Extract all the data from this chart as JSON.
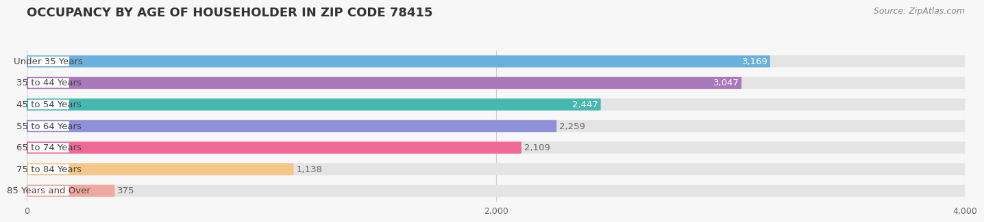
{
  "title": "OCCUPANCY BY AGE OF HOUSEHOLDER IN ZIP CODE 78415",
  "source": "Source: ZipAtlas.com",
  "categories": [
    "Under 35 Years",
    "35 to 44 Years",
    "45 to 54 Years",
    "55 to 64 Years",
    "65 to 74 Years",
    "75 to 84 Years",
    "85 Years and Over"
  ],
  "values": [
    3169,
    3047,
    2447,
    2259,
    2109,
    1138,
    375
  ],
  "bar_colors": [
    "#6ab0dc",
    "#a878b8",
    "#45b8b0",
    "#9090d8",
    "#f06898",
    "#f5c88a",
    "#f0a8a0"
  ],
  "value_label_inside": [
    true,
    true,
    true,
    false,
    false,
    false,
    false
  ],
  "xlim": [
    0,
    4000
  ],
  "xticks": [
    0,
    2000,
    4000
  ],
  "background_color": "#f7f7f7",
  "bar_bg_color": "#e4e4e4",
  "title_fontsize": 13,
  "source_fontsize": 9,
  "value_fontsize": 9.5,
  "category_fontsize": 9.5,
  "bar_height": 0.55,
  "bar_spacing": 1.0
}
